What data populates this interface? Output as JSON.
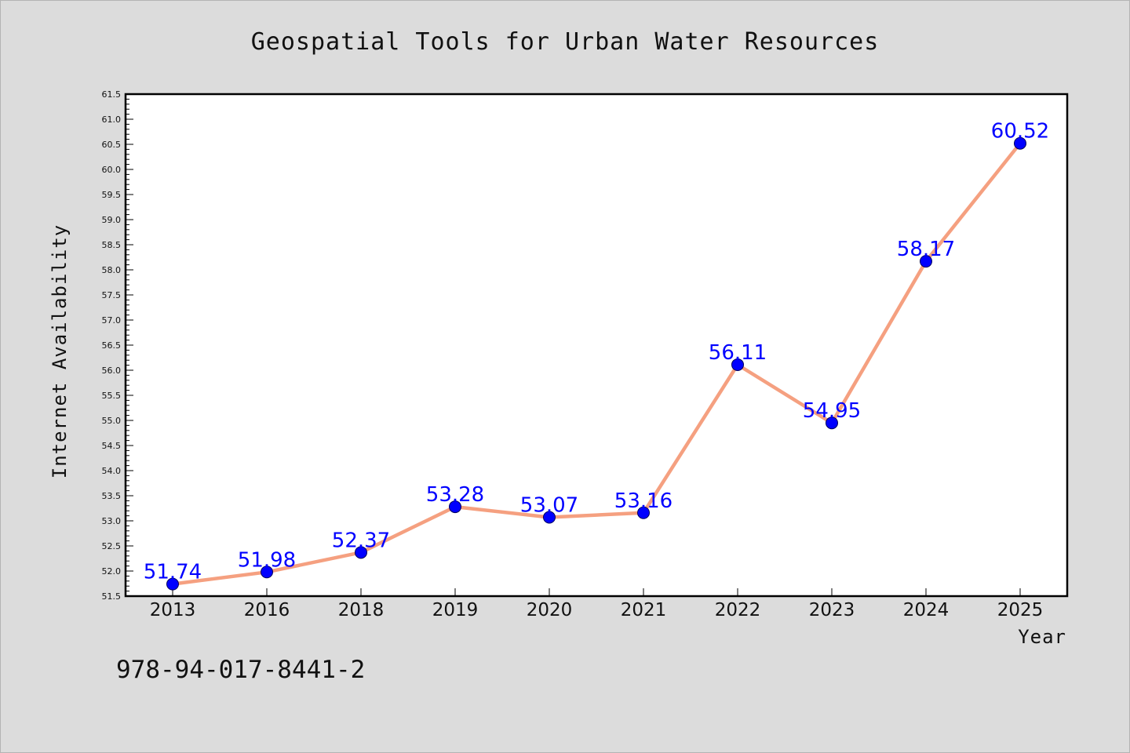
{
  "chart_data": {
    "type": "line",
    "title": "Geospatial Tools for Urban Water Resources",
    "xlabel": "Year",
    "ylabel": "Internet Availability",
    "categories": [
      "2013",
      "2016",
      "2018",
      "2019",
      "2020",
      "2021",
      "2022",
      "2023",
      "2024",
      "2025"
    ],
    "series": [
      {
        "values": [
          51.74,
          51.98,
          52.37,
          53.28,
          53.07,
          53.16,
          56.11,
          54.95,
          58.17,
          60.52
        ],
        "data_labels": [
          "51.74",
          "51.98",
          "52.37",
          "53.28",
          "53.07",
          "53.16",
          "56.11",
          "54.95",
          "58.17",
          "60.52"
        ]
      }
    ],
    "ylim": [
      51.5,
      61.5
    ],
    "ytick_step": 0.5,
    "yminor_step": 0.1,
    "grid": false,
    "legend": "none"
  },
  "footnote": "978-94-017-8441-2",
  "colors": {
    "background": "#dcdcdc",
    "plot_background": "#ffffff",
    "line": "#f5a080",
    "marker": "#0000ff",
    "marker_edge": "#00005a",
    "data_label": "#0000ff",
    "axis": "#000000"
  }
}
